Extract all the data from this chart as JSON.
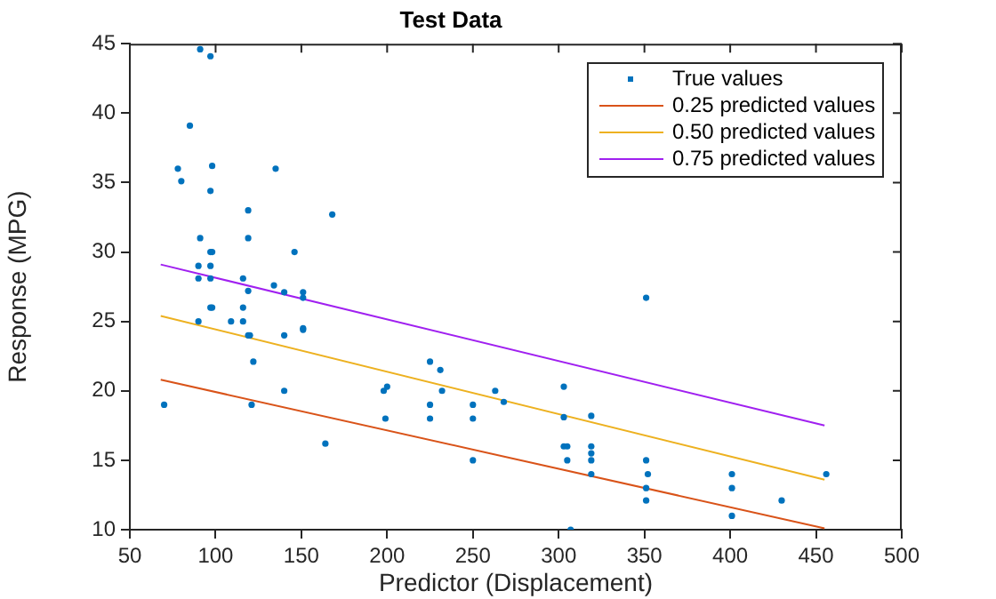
{
  "chart_data": {
    "type": "scatter",
    "title": "Test Data",
    "xlabel": "Predictor (Displacement)",
    "ylabel": "Response (MPG)",
    "xlim": [
      50,
      500
    ],
    "xticks": [
      50,
      100,
      150,
      200,
      250,
      300,
      350,
      400,
      450,
      500
    ],
    "ylim": [
      10,
      45
    ],
    "yticks": [
      10,
      15,
      20,
      25,
      30,
      35,
      40,
      45
    ],
    "legend": "top right",
    "series": [
      {
        "name": "True values",
        "marker": "circle",
        "color": "#0072bd",
        "x": [
          91,
          97,
          85,
          78,
          98,
          135,
          80,
          97,
          119,
          168,
          91,
          119,
          97,
          98,
          146,
          90,
          97,
          90,
          97,
          116,
          134,
          119,
          140,
          151,
          151,
          97,
          98,
          116,
          90,
          109,
          116,
          119,
          120,
          140,
          151,
          151,
          122,
          140,
          70,
          121,
          164,
          225,
          231,
          198,
          200,
          232,
          263,
          268,
          225,
          250,
          303,
          199,
          225,
          250,
          303,
          319,
          303,
          305,
          319,
          319,
          305,
          319,
          250,
          319,
          307,
          351,
          351,
          352,
          351,
          351,
          401,
          401,
          401,
          430,
          456
        ],
        "values": [
          44.6,
          44.1,
          39.1,
          36.0,
          36.2,
          36.0,
          35.1,
          34.4,
          33.0,
          32.7,
          31.0,
          31.0,
          30.0,
          30.0,
          30.0,
          29.0,
          29.0,
          28.1,
          28.1,
          28.1,
          27.6,
          27.2,
          27.1,
          27.1,
          26.7,
          26.0,
          26.0,
          26.0,
          25.0,
          25.0,
          25.0,
          24.0,
          24.0,
          24.0,
          24.5,
          24.4,
          22.1,
          20.0,
          19.0,
          19.0,
          16.2,
          22.1,
          21.5,
          20.0,
          20.3,
          20.0,
          20.0,
          19.2,
          19.0,
          19.0,
          20.3,
          18.0,
          18.0,
          18.0,
          18.1,
          18.2,
          16.0,
          16.0,
          16.0,
          15.5,
          15.0,
          15.0,
          15.0,
          14.0,
          10.0,
          26.7,
          15.0,
          14.0,
          13.0,
          12.1,
          14.0,
          13.0,
          11.0,
          12.1,
          14.0
        ]
      },
      {
        "name": "0.25 predicted values",
        "type": "line",
        "color": "#d95319",
        "x": [
          68,
          455
        ],
        "values": [
          20.8,
          10.1
        ]
      },
      {
        "name": "0.50 predicted values",
        "type": "line",
        "color": "#edb120",
        "x": [
          68,
          455
        ],
        "values": [
          25.4,
          13.6
        ]
      },
      {
        "name": "0.75 predicted values",
        "type": "line",
        "color": "#a020f0",
        "x": [
          68,
          455
        ],
        "values": [
          29.1,
          17.5
        ]
      }
    ]
  }
}
